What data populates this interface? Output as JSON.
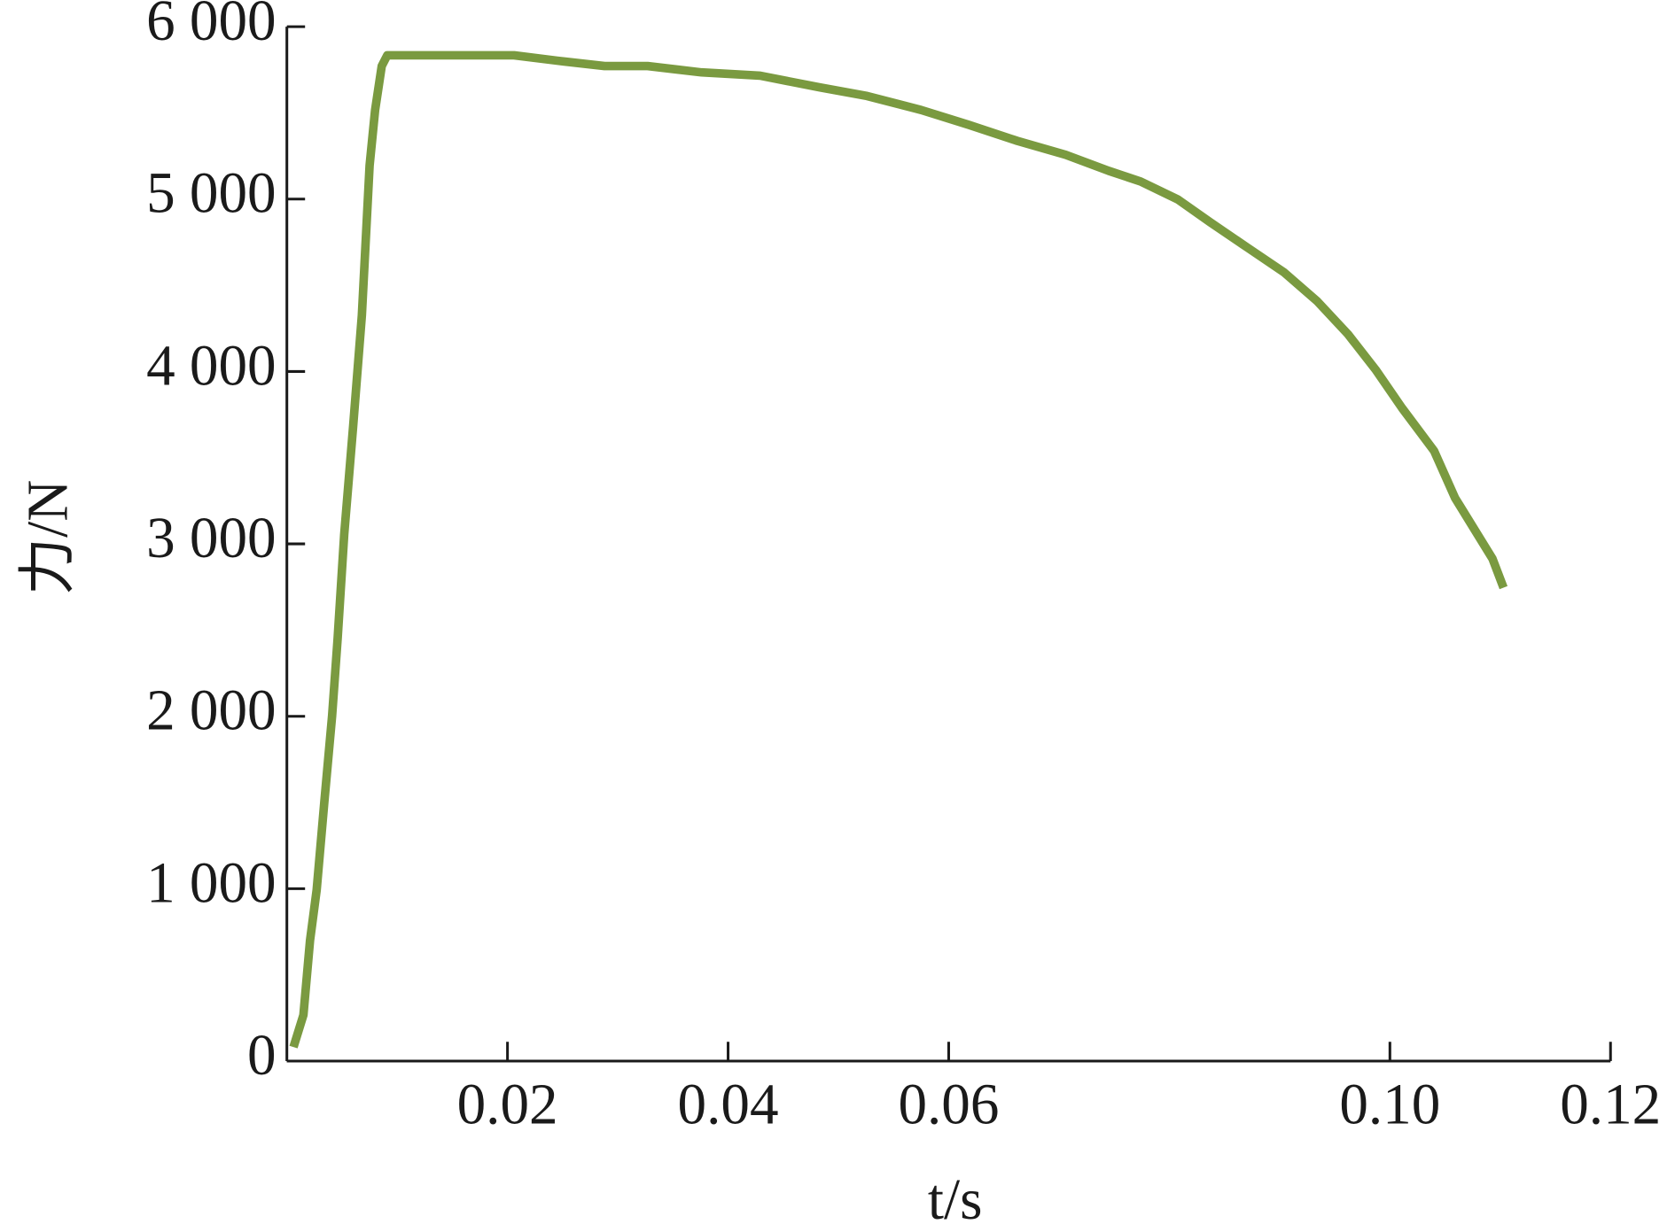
{
  "chart_data": {
    "type": "line",
    "x_label": "t/s",
    "y_label": "力/N",
    "xlim": [
      0,
      0.12
    ],
    "xticks": [
      0.02,
      0.04,
      0.06,
      {
        "value": 0.1,
        "label": "0.10"
      },
      0.12
    ],
    "xticks_extra": null,
    "ylim": [
      0,
      6000
    ],
    "yticks": [
      0,
      {
        "value": 1000,
        "label": "1 000"
      },
      {
        "value": 2000,
        "label": "2 000"
      },
      {
        "value": 3000,
        "label": "3 000"
      },
      {
        "value": 4000,
        "label": "4 000"
      },
      {
        "value": 5000,
        "label": "5 000"
      },
      {
        "value": 6000,
        "label": "6 000"
      }
    ],
    "grid": false,
    "series": [
      {
        "color": "#7a9a40",
        "x": [
          0.0006,
          0.0015,
          0.0021,
          0.0027,
          0.0034,
          0.0041,
          0.0046,
          0.0052,
          0.006,
          0.0068,
          0.0075,
          0.008,
          0.0086,
          0.0091,
          0.0206,
          0.0245,
          0.0288,
          0.0327,
          0.0376,
          0.0429,
          0.0483,
          0.0526,
          0.0575,
          0.0618,
          0.0662,
          0.0706,
          0.0745,
          0.0774,
          0.0808,
          0.0837,
          0.0871,
          0.0904,
          0.0934,
          0.0962,
          0.0987,
          0.1011,
          0.104,
          0.1059,
          0.1093,
          0.1103
        ],
        "values": [
          81,
          267,
          700,
          992,
          1506,
          2002,
          2449,
          3056,
          3676,
          4327,
          5195,
          5517,
          5772,
          5834,
          5834,
          5803,
          5772,
          5772,
          5735,
          5716,
          5648,
          5598,
          5517,
          5431,
          5338,
          5257,
          5164,
          5102,
          4997,
          4866,
          4718,
          4575,
          4408,
          4216,
          4011,
          3788,
          3540,
          3267,
          2914,
          2746
        ]
      }
    ]
  }
}
